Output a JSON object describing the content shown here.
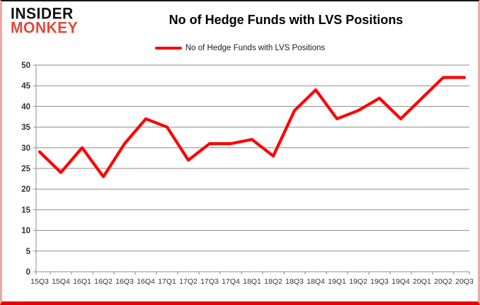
{
  "brand": {
    "line1": "INSIDER",
    "line2": "MONKEY"
  },
  "header": {
    "title": "No of Hedge Funds with LVS Positions"
  },
  "legend": {
    "label": "No of Hedge Funds with LVS Positions"
  },
  "colors": {
    "series_line": "#ff0000",
    "brand_red": "#e2493b",
    "grid": "#8c8c8c",
    "axis_text": "#333333",
    "frame_bottom": "#e60000",
    "frame_sides": "#eca9a1"
  },
  "chart_data": {
    "type": "line",
    "title": "No of Hedge Funds with LVS Positions",
    "categories": [
      "15Q3",
      "15Q4",
      "16Q1",
      "16Q2",
      "16Q3",
      "16Q4",
      "17Q1",
      "17Q2",
      "17Q3",
      "17Q4",
      "18Q1",
      "18Q2",
      "18Q3",
      "18Q4",
      "19Q1",
      "19Q2",
      "19Q3",
      "19Q4",
      "20Q1",
      "20Q2",
      "20Q3"
    ],
    "series": [
      {
        "name": "No of Hedge Funds with LVS Positions",
        "color": "#ff0000",
        "values": [
          29,
          24,
          30,
          23,
          31,
          37,
          35,
          27,
          31,
          31,
          32,
          28,
          39,
          44,
          37,
          39,
          42,
          37,
          42,
          47,
          47
        ]
      }
    ],
    "xlabel": "",
    "ylabel": "",
    "ylim": [
      0,
      50
    ],
    "ytick_step": 5,
    "grid": true,
    "legend_position": "top-center"
  }
}
